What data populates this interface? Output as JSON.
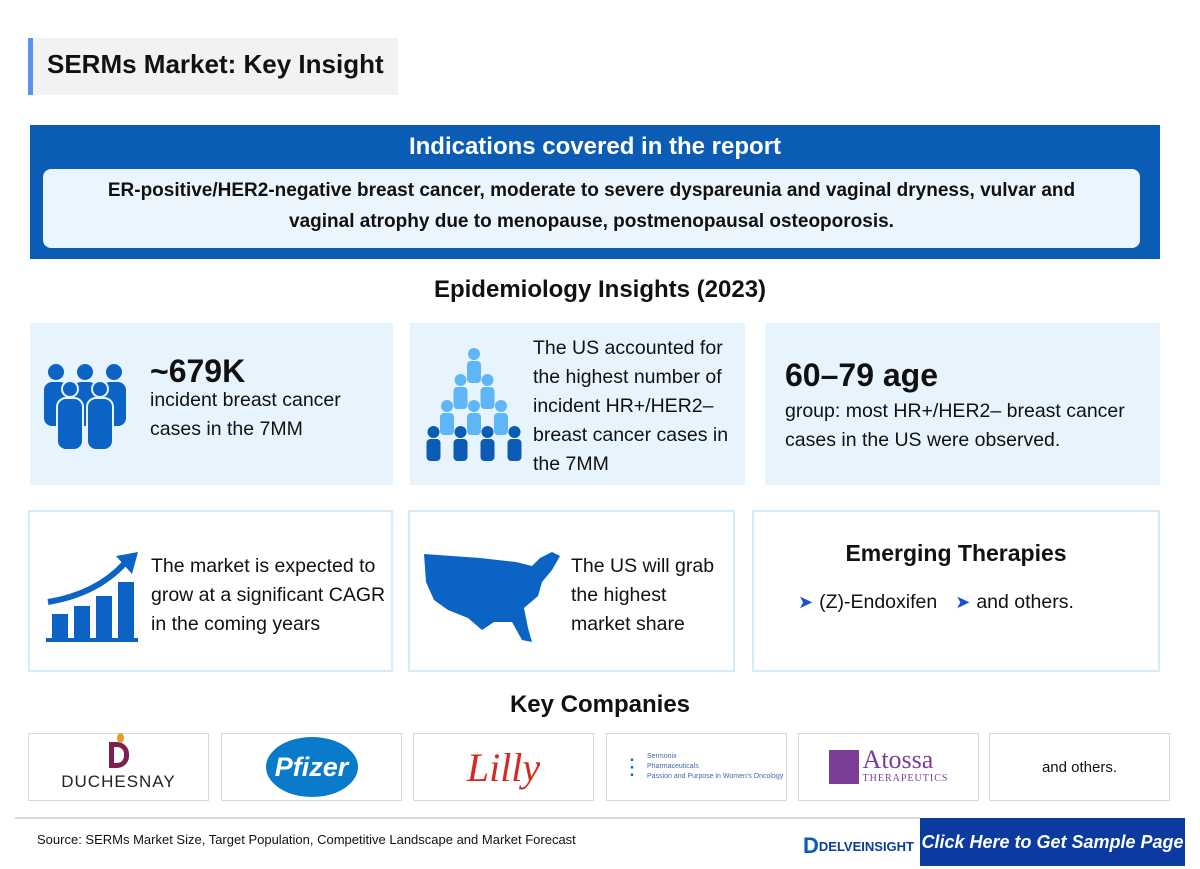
{
  "title": "SERMs Market: Key Insight",
  "indications": {
    "heading": "Indications covered in the report",
    "text": "ER-positive/HER2-negative breast cancer, moderate to severe dyspareunia and vaginal dryness, vulvar and vaginal atrophy due to menopause, postmenopausal osteoporosis."
  },
  "epidemiology": {
    "heading": "Epidemiology Insights (2023)",
    "cards": [
      {
        "value": "~679K",
        "text": "incident breast cancer cases in the 7MM",
        "icon": "people-group-icon"
      },
      {
        "text": "The US accounted for the highest number of incident HR+/HER2– breast cancer cases in the 7MM",
        "icon": "population-pyramid-icon"
      },
      {
        "value": "60–79 age",
        "text": "group: most HR+/HER2– breast cancer cases in the US were observed."
      }
    ]
  },
  "market": {
    "growth": "The market is expected to grow at a significant CAGR in the coming years",
    "us_share": "The US will grab the highest market share",
    "emerging": {
      "heading": "Emerging Therapies",
      "items": [
        "(Z)-Endoxifen",
        "and others."
      ]
    }
  },
  "companies": {
    "heading": "Key Companies",
    "logos": [
      "DUCHESNAY",
      "Pfizer",
      "Lilly",
      "Sermonix Pharmaceuticals",
      "Atossa",
      "THERAPEUTICS"
    ],
    "sermonix_tagline": "Passion and Purpose in Women's Oncology",
    "others": "and others."
  },
  "footer": {
    "source": "Source: SERMs Market Size, Target Population, Competitive Landscape and Market Forecast",
    "brand": "DELVEINSIGHT",
    "cta": "Click Here to Get Sample Page"
  },
  "colors": {
    "primary": "#0b5cb5",
    "light": "#e8f4fd",
    "cta": "#0b3aa0"
  }
}
